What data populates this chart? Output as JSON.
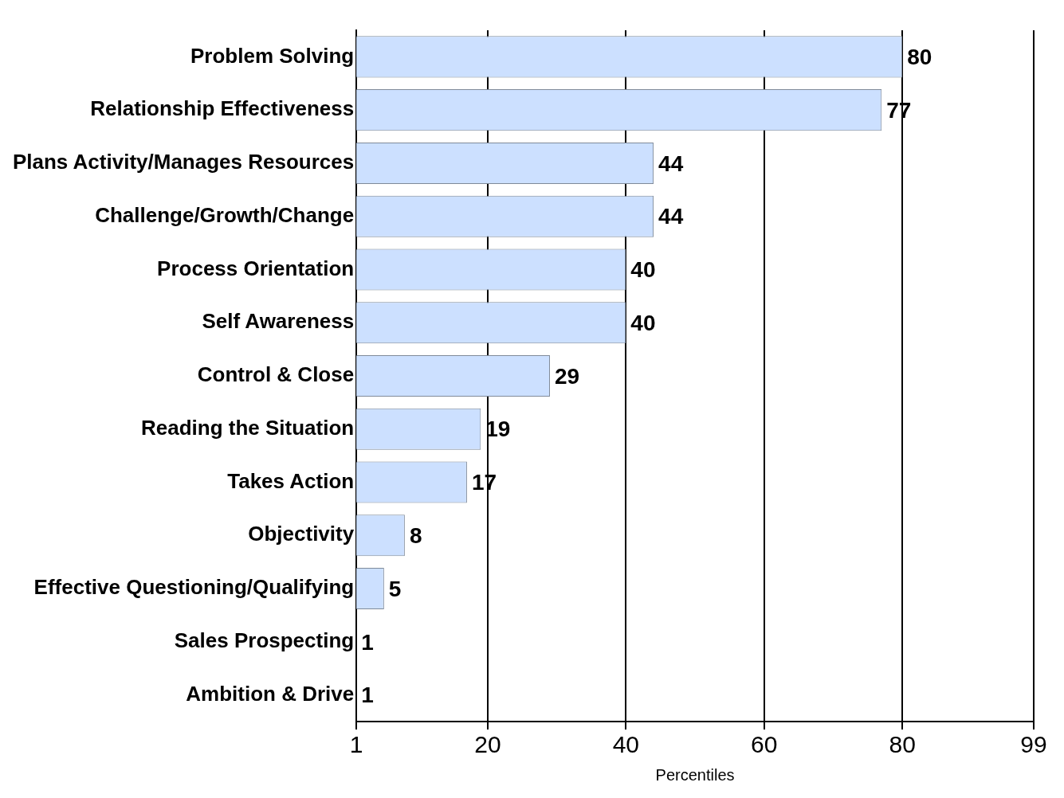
{
  "chart_data": {
    "type": "bar",
    "orientation": "horizontal",
    "xlabel": "Percentiles",
    "categories": [
      "Problem Solving",
      "Relationship Effectiveness",
      "Plans Activity/Manages Resources",
      "Challenge/Growth/Change",
      "Process Orientation",
      "Self Awareness",
      "Control & Close",
      "Reading the Situation",
      "Takes Action",
      "Objectivity",
      "Effective Questioning/Qualifying",
      "Sales Prospecting",
      "Ambition & Drive"
    ],
    "values": [
      80,
      77,
      44,
      44,
      40,
      40,
      29,
      19,
      17,
      8,
      5,
      1,
      1
    ],
    "color": "#cce0ff",
    "xlim": [
      1,
      99
    ],
    "xticks": [
      1,
      20,
      40,
      60,
      80,
      99
    ],
    "grid": "x",
    "data_labels": true,
    "legend": false
  }
}
